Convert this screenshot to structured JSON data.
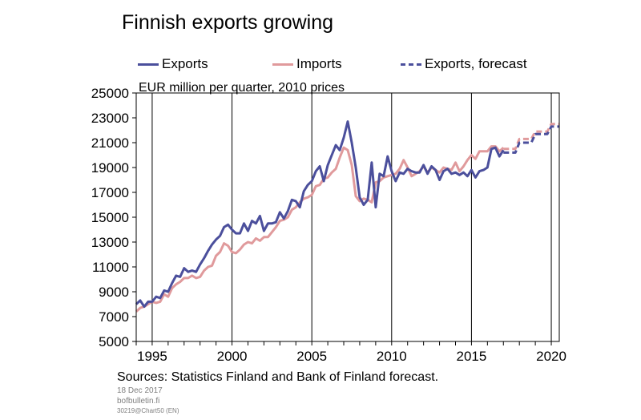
{
  "title": "Finnish exports growing",
  "sources": "Sources: Statistics Finland and Bank of Finland forecast.",
  "date": "18 Dec 2017",
  "site": "bofbulletin.fi",
  "code": "30219@Chart50  (EN)",
  "colors": {
    "exports": "#4b4f9c",
    "imports": "#e09a9c",
    "forecast": "#4b4f9c"
  },
  "chart_data": {
    "type": "line",
    "ylabel": "EUR million per quarter, 2010 prices",
    "xlim": [
      1994,
      2020.5
    ],
    "ylim": [
      5000,
      25000
    ],
    "yticks": [
      5000,
      7000,
      9000,
      11000,
      13000,
      15000,
      17000,
      19000,
      21000,
      23000,
      25000
    ],
    "xticks": [
      1995,
      2000,
      2005,
      2010,
      2015,
      2020
    ],
    "grid": "vertical",
    "legend_position": "top",
    "series": [
      {
        "name": "Exports",
        "style": "solid",
        "color": "#4b4f9c",
        "x": [
          1994.0,
          1994.25,
          1994.5,
          1994.75,
          1995.0,
          1995.25,
          1995.5,
          1995.75,
          1996.0,
          1996.25,
          1996.5,
          1996.75,
          1997.0,
          1997.25,
          1997.5,
          1997.75,
          1998.0,
          1998.25,
          1998.5,
          1998.75,
          1999.0,
          1999.25,
          1999.5,
          1999.75,
          2000.0,
          2000.25,
          2000.5,
          2000.75,
          2001.0,
          2001.25,
          2001.5,
          2001.75,
          2002.0,
          2002.25,
          2002.5,
          2002.75,
          2003.0,
          2003.25,
          2003.5,
          2003.75,
          2004.0,
          2004.25,
          2004.5,
          2004.75,
          2005.0,
          2005.25,
          2005.5,
          2005.75,
          2006.0,
          2006.25,
          2006.5,
          2006.75,
          2007.0,
          2007.25,
          2007.5,
          2007.75,
          2008.0,
          2008.25,
          2008.5,
          2008.75,
          2009.0,
          2009.25,
          2009.5,
          2009.75,
          2010.0,
          2010.25,
          2010.5,
          2010.75,
          2011.0,
          2011.25,
          2011.5,
          2011.75,
          2012.0,
          2012.25,
          2012.5,
          2012.75,
          2013.0,
          2013.25,
          2013.5,
          2013.75,
          2014.0,
          2014.25,
          2014.5,
          2014.75,
          2015.0,
          2015.25,
          2015.5,
          2015.75,
          2016.0,
          2016.25,
          2016.5,
          2016.75,
          2017.0
        ],
        "y": [
          8000,
          8300,
          7800,
          8200,
          8200,
          8600,
          8500,
          9100,
          9000,
          9700,
          10300,
          10200,
          10900,
          10600,
          10700,
          10600,
          11200,
          11700,
          12300,
          12800,
          13200,
          13500,
          14200,
          14400,
          14000,
          13700,
          13700,
          14500,
          13900,
          14700,
          14500,
          15100,
          13900,
          14500,
          14500,
          14600,
          15400,
          14900,
          15500,
          16400,
          16300,
          15800,
          17100,
          17600,
          17900,
          18700,
          19100,
          17900,
          19200,
          20000,
          20800,
          20400,
          21400,
          22700,
          21000,
          19000,
          16600,
          16000,
          16400,
          19400,
          15800,
          18500,
          18300,
          19900,
          18700,
          17900,
          18600,
          18500,
          18900,
          18700,
          18600,
          18600,
          19200,
          18500,
          19100,
          18800,
          18000,
          18700,
          18900,
          18500,
          18600,
          18400,
          18600,
          18300,
          18800,
          18200,
          18700,
          18800,
          19000,
          20500,
          20600,
          19900,
          20400
        ]
      },
      {
        "name": "Imports",
        "style": "solid",
        "color": "#e09a9c",
        "x": [
          1994.0,
          1994.25,
          1994.5,
          1994.75,
          1995.0,
          1995.25,
          1995.5,
          1995.75,
          1996.0,
          1996.25,
          1996.5,
          1996.75,
          1997.0,
          1997.25,
          1997.5,
          1997.75,
          1998.0,
          1998.25,
          1998.5,
          1998.75,
          1999.0,
          1999.25,
          1999.5,
          1999.75,
          2000.0,
          2000.25,
          2000.5,
          2000.75,
          2001.0,
          2001.25,
          2001.5,
          2001.75,
          2002.0,
          2002.25,
          2002.5,
          2002.75,
          2003.0,
          2003.25,
          2003.5,
          2003.75,
          2004.0,
          2004.25,
          2004.5,
          2004.75,
          2005.0,
          2005.25,
          2005.5,
          2005.75,
          2006.0,
          2006.25,
          2006.5,
          2006.75,
          2007.0,
          2007.25,
          2007.5,
          2007.75,
          2008.0,
          2008.25,
          2008.5,
          2008.75,
          2009.0,
          2009.25,
          2009.5,
          2009.75,
          2010.0,
          2010.25,
          2010.5,
          2010.75,
          2011.0,
          2011.25,
          2011.5,
          2011.75,
          2012.0,
          2012.25,
          2012.5,
          2012.75,
          2013.0,
          2013.25,
          2013.5,
          2013.75,
          2014.0,
          2014.25,
          2014.5,
          2014.75,
          2015.0,
          2015.25,
          2015.5,
          2015.75,
          2016.0,
          2016.25,
          2016.5,
          2016.75,
          2017.0
        ],
        "y": [
          7400,
          7700,
          7800,
          8000,
          8200,
          8100,
          8200,
          8800,
          8600,
          9300,
          9600,
          9800,
          10100,
          10100,
          10300,
          10100,
          10200,
          10700,
          11000,
          11100,
          11900,
          12200,
          12900,
          12700,
          12200,
          12100,
          12400,
          12800,
          13000,
          12900,
          13300,
          13100,
          13400,
          13400,
          13800,
          14200,
          14700,
          14800,
          15000,
          15600,
          15800,
          16200,
          16500,
          16600,
          16800,
          17500,
          17600,
          18100,
          18200,
          18600,
          18900,
          19800,
          20600,
          20400,
          19200,
          16700,
          16300,
          16500,
          16400,
          16200,
          17800,
          17900,
          18200,
          18300,
          18400,
          18500,
          18900,
          19600,
          19000,
          18300,
          18500,
          18700,
          19100,
          18600,
          19000,
          18800,
          18600,
          19000,
          18900,
          18800,
          19400,
          18700,
          19100,
          19600,
          20000,
          19700,
          20300,
          20300,
          20300,
          20700,
          20700,
          20300,
          20600
        ]
      },
      {
        "name": "Exports, forecast",
        "style": "dashed",
        "color": "#4b4f9c",
        "x": [
          2017.0,
          2017.25,
          2017.5,
          2017.75,
          2018.0,
          2018.25,
          2018.5,
          2018.75,
          2019.0,
          2019.25,
          2019.5,
          2019.75,
          2020.0,
          2020.25,
          2020.5
        ],
        "y": [
          20200,
          20200,
          20200,
          20200,
          21000,
          21000,
          21000,
          21000,
          21700,
          21700,
          21700,
          21700,
          22300,
          22300,
          22300
        ]
      },
      {
        "name": "Imports, forecast",
        "style": "dashed",
        "color": "#e09a9c",
        "x": [
          2017.0,
          2017.25,
          2017.5,
          2017.75,
          2018.0,
          2018.25,
          2018.5,
          2018.75,
          2019.0,
          2019.25,
          2019.5,
          2019.75,
          2020.0,
          2020.25,
          2020.5
        ],
        "y": [
          20500,
          20500,
          20500,
          20500,
          21300,
          21300,
          21300,
          21300,
          21900,
          21900,
          21900,
          21900,
          22500,
          22500,
          22500
        ]
      }
    ]
  }
}
